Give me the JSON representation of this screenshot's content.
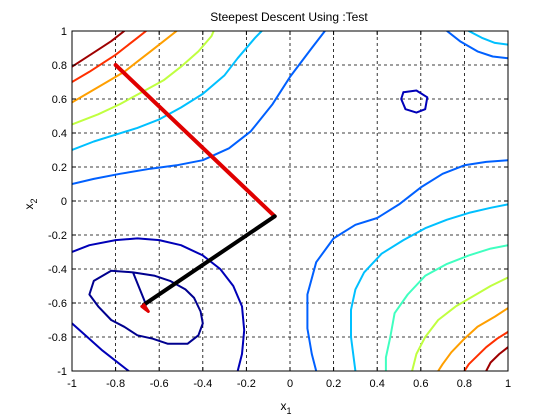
{
  "chart_data": {
    "type": "contour",
    "title": "Steepest Descent Using :Test",
    "xlabel_base": "x",
    "xlabel_sub": "1",
    "ylabel_base": "x",
    "ylabel_sub": "2",
    "xlim": [
      -1,
      1
    ],
    "ylim": [
      -1,
      1
    ],
    "xticks": [
      -1,
      -0.8,
      -0.6,
      -0.4,
      -0.2,
      0,
      0.2,
      0.4,
      0.6,
      0.8,
      1
    ],
    "xtick_labels": [
      "-1",
      "-0.8",
      "-0.6",
      "-0.4",
      "-0.2",
      "0",
      "0.2",
      "0.4",
      "0.6",
      "0.8",
      "1"
    ],
    "yticks": [
      -1,
      -0.8,
      -0.6,
      -0.4,
      -0.2,
      0,
      0.2,
      0.4,
      0.6,
      0.8,
      1
    ],
    "ytick_labels": [
      "-1",
      "-0.8",
      "-0.6",
      "-0.4",
      "-0.2",
      "0",
      "0.2",
      "0.4",
      "0.6",
      "0.8",
      "1"
    ],
    "grid": true,
    "grid_style": "dashed",
    "contours": [
      {
        "color": "#00008f",
        "points": [
          [
            -0.66,
            -0.61
          ],
          [
            -0.72,
            -0.42
          ],
          [
            -0.82,
            -0.41
          ],
          [
            -0.9,
            -0.47
          ],
          [
            -0.92,
            -0.55
          ],
          [
            -0.88,
            -0.62
          ],
          [
            -0.82,
            -0.7
          ],
          [
            -0.76,
            -0.74
          ],
          [
            -0.7,
            -0.79
          ],
          [
            -0.63,
            -0.81
          ],
          [
            -0.56,
            -0.84
          ],
          [
            -0.47,
            -0.84
          ],
          [
            -0.42,
            -0.79
          ],
          [
            -0.4,
            -0.72
          ],
          [
            -0.41,
            -0.65
          ],
          [
            -0.44,
            -0.57
          ],
          [
            -0.48,
            -0.52
          ],
          [
            -0.55,
            -0.47
          ],
          [
            -0.62,
            -0.44
          ],
          [
            -0.72,
            -0.42
          ]
        ]
      },
      {
        "color": "#0000b8",
        "points": [
          [
            -1.0,
            -0.3
          ],
          [
            -0.92,
            -0.26
          ],
          [
            -0.8,
            -0.23
          ],
          [
            -0.7,
            -0.22
          ],
          [
            -0.6,
            -0.23
          ],
          [
            -0.5,
            -0.26
          ],
          [
            -0.4,
            -0.32
          ],
          [
            -0.32,
            -0.4
          ],
          [
            -0.26,
            -0.5
          ],
          [
            -0.22,
            -0.62
          ],
          [
            -0.21,
            -0.76
          ],
          [
            -0.22,
            -0.9
          ],
          [
            -0.24,
            -1.0
          ]
        ]
      },
      {
        "color": "#0000b8",
        "points": [
          [
            -1.0,
            -0.72
          ],
          [
            -0.93,
            -0.8
          ],
          [
            -0.86,
            -0.88
          ],
          [
            -0.8,
            -0.94
          ],
          [
            -0.74,
            -1.0
          ]
        ]
      },
      {
        "color": "#0000b8",
        "points": [
          [
            0.52,
            0.64
          ],
          [
            0.58,
            0.65
          ],
          [
            0.63,
            0.61
          ],
          [
            0.62,
            0.54
          ],
          [
            0.58,
            0.52
          ],
          [
            0.53,
            0.54
          ],
          [
            0.51,
            0.6
          ],
          [
            0.52,
            0.64
          ]
        ]
      },
      {
        "color": "#0060ff",
        "points": [
          [
            -1.0,
            0.1
          ],
          [
            -0.9,
            0.13
          ],
          [
            -0.78,
            0.16
          ],
          [
            -0.64,
            0.19
          ],
          [
            -0.52,
            0.21
          ],
          [
            -0.4,
            0.24
          ],
          [
            -0.28,
            0.31
          ],
          [
            -0.18,
            0.41
          ],
          [
            -0.08,
            0.57
          ],
          [
            0.0,
            0.73
          ],
          [
            0.1,
            0.9
          ],
          [
            0.16,
            1.0
          ]
        ]
      },
      {
        "color": "#0060ff",
        "points": [
          [
            1.0,
            0.24
          ],
          [
            0.9,
            0.23
          ],
          [
            0.8,
            0.21
          ],
          [
            0.7,
            0.16
          ],
          [
            0.6,
            0.08
          ],
          [
            0.5,
            -0.02
          ],
          [
            0.4,
            -0.1
          ],
          [
            0.3,
            -0.14
          ],
          [
            0.2,
            -0.22
          ],
          [
            0.12,
            -0.36
          ],
          [
            0.08,
            -0.55
          ],
          [
            0.08,
            -0.75
          ],
          [
            0.1,
            -0.9
          ],
          [
            0.12,
            -1.0
          ]
        ]
      },
      {
        "color": "#0060ff",
        "points": [
          [
            0.72,
            1.0
          ],
          [
            0.78,
            0.94
          ],
          [
            0.86,
            0.88
          ],
          [
            0.93,
            0.85
          ],
          [
            1.0,
            0.84
          ]
        ]
      },
      {
        "color": "#00c0ff",
        "points": [
          [
            -1.0,
            0.3
          ],
          [
            -0.9,
            0.35
          ],
          [
            -0.8,
            0.39
          ],
          [
            -0.7,
            0.43
          ],
          [
            -0.6,
            0.48
          ],
          [
            -0.5,
            0.55
          ],
          [
            -0.4,
            0.63
          ],
          [
            -0.3,
            0.74
          ],
          [
            -0.24,
            0.84
          ],
          [
            -0.16,
            0.96
          ],
          [
            -0.13,
            1.0
          ]
        ]
      },
      {
        "color": "#00c0ff",
        "points": [
          [
            1.0,
            -0.02
          ],
          [
            0.92,
            -0.04
          ],
          [
            0.82,
            -0.07
          ],
          [
            0.72,
            -0.11
          ],
          [
            0.62,
            -0.16
          ],
          [
            0.52,
            -0.23
          ],
          [
            0.42,
            -0.31
          ],
          [
            0.34,
            -0.42
          ],
          [
            0.3,
            -0.52
          ],
          [
            0.28,
            -0.64
          ],
          [
            0.28,
            -0.8
          ],
          [
            0.3,
            -1.0
          ]
        ]
      },
      {
        "color": "#00c0ff",
        "points": [
          [
            0.82,
            1.0
          ],
          [
            0.88,
            0.96
          ],
          [
            0.94,
            0.93
          ],
          [
            1.0,
            0.92
          ]
        ]
      },
      {
        "color": "#40ffc0",
        "points": [
          [
            1.0,
            -0.26
          ],
          [
            0.92,
            -0.28
          ],
          [
            0.82,
            -0.32
          ],
          [
            0.72,
            -0.37
          ],
          [
            0.62,
            -0.44
          ],
          [
            0.54,
            -0.55
          ],
          [
            0.48,
            -0.66
          ],
          [
            0.46,
            -0.8
          ],
          [
            0.44,
            -0.92
          ],
          [
            0.44,
            -1.0
          ]
        ]
      },
      {
        "color": "#c0ff40",
        "points": [
          [
            -1.0,
            0.45
          ],
          [
            -0.88,
            0.51
          ],
          [
            -0.78,
            0.57
          ],
          [
            -0.68,
            0.64
          ],
          [
            -0.58,
            0.71
          ],
          [
            -0.5,
            0.79
          ],
          [
            -0.42,
            0.88
          ],
          [
            -0.36,
            0.97
          ],
          [
            -0.35,
            1.0
          ]
        ]
      },
      {
        "color": "#c0ff40",
        "points": [
          [
            1.0,
            -0.45
          ],
          [
            0.92,
            -0.5
          ],
          [
            0.84,
            -0.56
          ],
          [
            0.76,
            -0.62
          ],
          [
            0.68,
            -0.7
          ],
          [
            0.62,
            -0.8
          ],
          [
            0.58,
            -0.9
          ],
          [
            0.56,
            -1.0
          ]
        ]
      },
      {
        "color": "#ff9f00",
        "points": [
          [
            -1.0,
            0.58
          ],
          [
            -0.92,
            0.64
          ],
          [
            -0.84,
            0.7
          ],
          [
            -0.76,
            0.76
          ],
          [
            -0.7,
            0.82
          ],
          [
            -0.64,
            0.88
          ],
          [
            -0.58,
            0.94
          ],
          [
            -0.52,
            1.0
          ]
        ]
      },
      {
        "color": "#ff9f00",
        "points": [
          [
            1.0,
            -0.63
          ],
          [
            0.94,
            -0.68
          ],
          [
            0.86,
            -0.74
          ],
          [
            0.8,
            -0.81
          ],
          [
            0.74,
            -0.89
          ],
          [
            0.7,
            -0.96
          ],
          [
            0.68,
            -1.0
          ]
        ]
      },
      {
        "color": "#ff3000",
        "points": [
          [
            -1.0,
            0.7
          ],
          [
            -0.92,
            0.76
          ],
          [
            -0.86,
            0.81
          ],
          [
            -0.8,
            0.86
          ],
          [
            -0.74,
            0.92
          ],
          [
            -0.7,
            0.96
          ],
          [
            -0.66,
            1.0
          ]
        ]
      },
      {
        "color": "#ff3000",
        "points": [
          [
            1.0,
            -0.77
          ],
          [
            0.95,
            -0.81
          ],
          [
            0.9,
            -0.86
          ],
          [
            0.86,
            -0.91
          ],
          [
            0.82,
            -0.96
          ],
          [
            0.8,
            -1.0
          ]
        ]
      },
      {
        "color": "#9f0000",
        "points": [
          [
            -1.0,
            0.79
          ],
          [
            -0.94,
            0.84
          ],
          [
            -0.88,
            0.89
          ],
          [
            -0.82,
            0.94
          ],
          [
            -0.76,
            1.0
          ]
        ]
      },
      {
        "color": "#9f0000",
        "points": [
          [
            1.0,
            -0.86
          ],
          [
            0.96,
            -0.9
          ],
          [
            0.92,
            -0.95
          ],
          [
            0.9,
            -1.0
          ]
        ]
      }
    ],
    "paths": [
      {
        "color": "#e00000",
        "width": 4,
        "points": [
          [
            -0.8,
            0.8
          ],
          [
            -0.07,
            -0.09
          ]
        ]
      },
      {
        "color": "#000000",
        "width": 4,
        "points": [
          [
            -0.07,
            -0.09
          ],
          [
            -0.67,
            -0.61
          ]
        ]
      },
      {
        "color": "#e00000",
        "width": 3,
        "points": [
          [
            -0.67,
            -0.61
          ],
          [
            -0.65,
            -0.65
          ],
          [
            -0.68,
            -0.62
          ],
          [
            -0.66,
            -0.64
          ]
        ]
      }
    ]
  }
}
